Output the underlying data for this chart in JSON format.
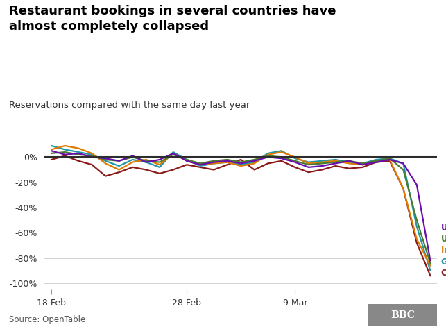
{
  "title": "Restaurant bookings in several countries have\nalmost completely collapsed",
  "subtitle": "Reservations compared with the same day last year",
  "source": "Source: OpenTable",
  "colors": {
    "UK": "#6a0dad",
    "US": "#4a7c2f",
    "Ireland": "#e07b00",
    "Germany": "#2196a8",
    "Canada": "#8b1a1a"
  },
  "ylim": [
    -105,
    15
  ],
  "yticks": [
    0,
    -20,
    -40,
    -60,
    -80,
    -100
  ],
  "xtick_labels": [
    "18 Feb",
    "28 Feb",
    "9 Mar"
  ],
  "background_color": "#ffffff",
  "series": {
    "UK": [
      5,
      2,
      3,
      0,
      -1,
      -3,
      1,
      -4,
      -2,
      3,
      -3,
      -6,
      -4,
      -3,
      -5,
      -3,
      0,
      -1,
      -4,
      -8,
      -7,
      -5,
      -3,
      -6,
      -4,
      -2,
      -5,
      -22,
      -82
    ],
    "US": [
      3,
      4,
      2,
      1,
      -2,
      -3,
      0,
      -3,
      -4,
      2,
      -2,
      -5,
      -3,
      -2,
      -4,
      -2,
      1,
      0,
      -3,
      -6,
      -5,
      -4,
      -3,
      -5,
      -3,
      -1,
      -10,
      -50,
      -84
    ],
    "Ireland": [
      6,
      9,
      7,
      3,
      -5,
      -10,
      -4,
      -2,
      -6,
      3,
      -3,
      -6,
      -5,
      -4,
      -7,
      -5,
      2,
      4,
      0,
      -5,
      -4,
      -3,
      -5,
      -6,
      -3,
      -2,
      -25,
      -65,
      -86
    ],
    "Germany": [
      9,
      6,
      4,
      2,
      -3,
      -7,
      -2,
      -4,
      -8,
      4,
      -2,
      -7,
      -5,
      -4,
      -6,
      -4,
      3,
      5,
      -1,
      -4,
      -3,
      -2,
      -4,
      -5,
      -2,
      -1,
      -5,
      -55,
      -90
    ],
    "Canada": [
      -2,
      1,
      -3,
      -6,
      -15,
      -12,
      -8,
      -10,
      -13,
      -10,
      -6,
      -8,
      -10,
      -6,
      -2,
      -10,
      -5,
      -3,
      -8,
      -12,
      -10,
      -7,
      -9,
      -8,
      -4,
      -3,
      -25,
      -68,
      -94
    ]
  },
  "n_points": 29,
  "xtick_positions": [
    0,
    10,
    18
  ]
}
